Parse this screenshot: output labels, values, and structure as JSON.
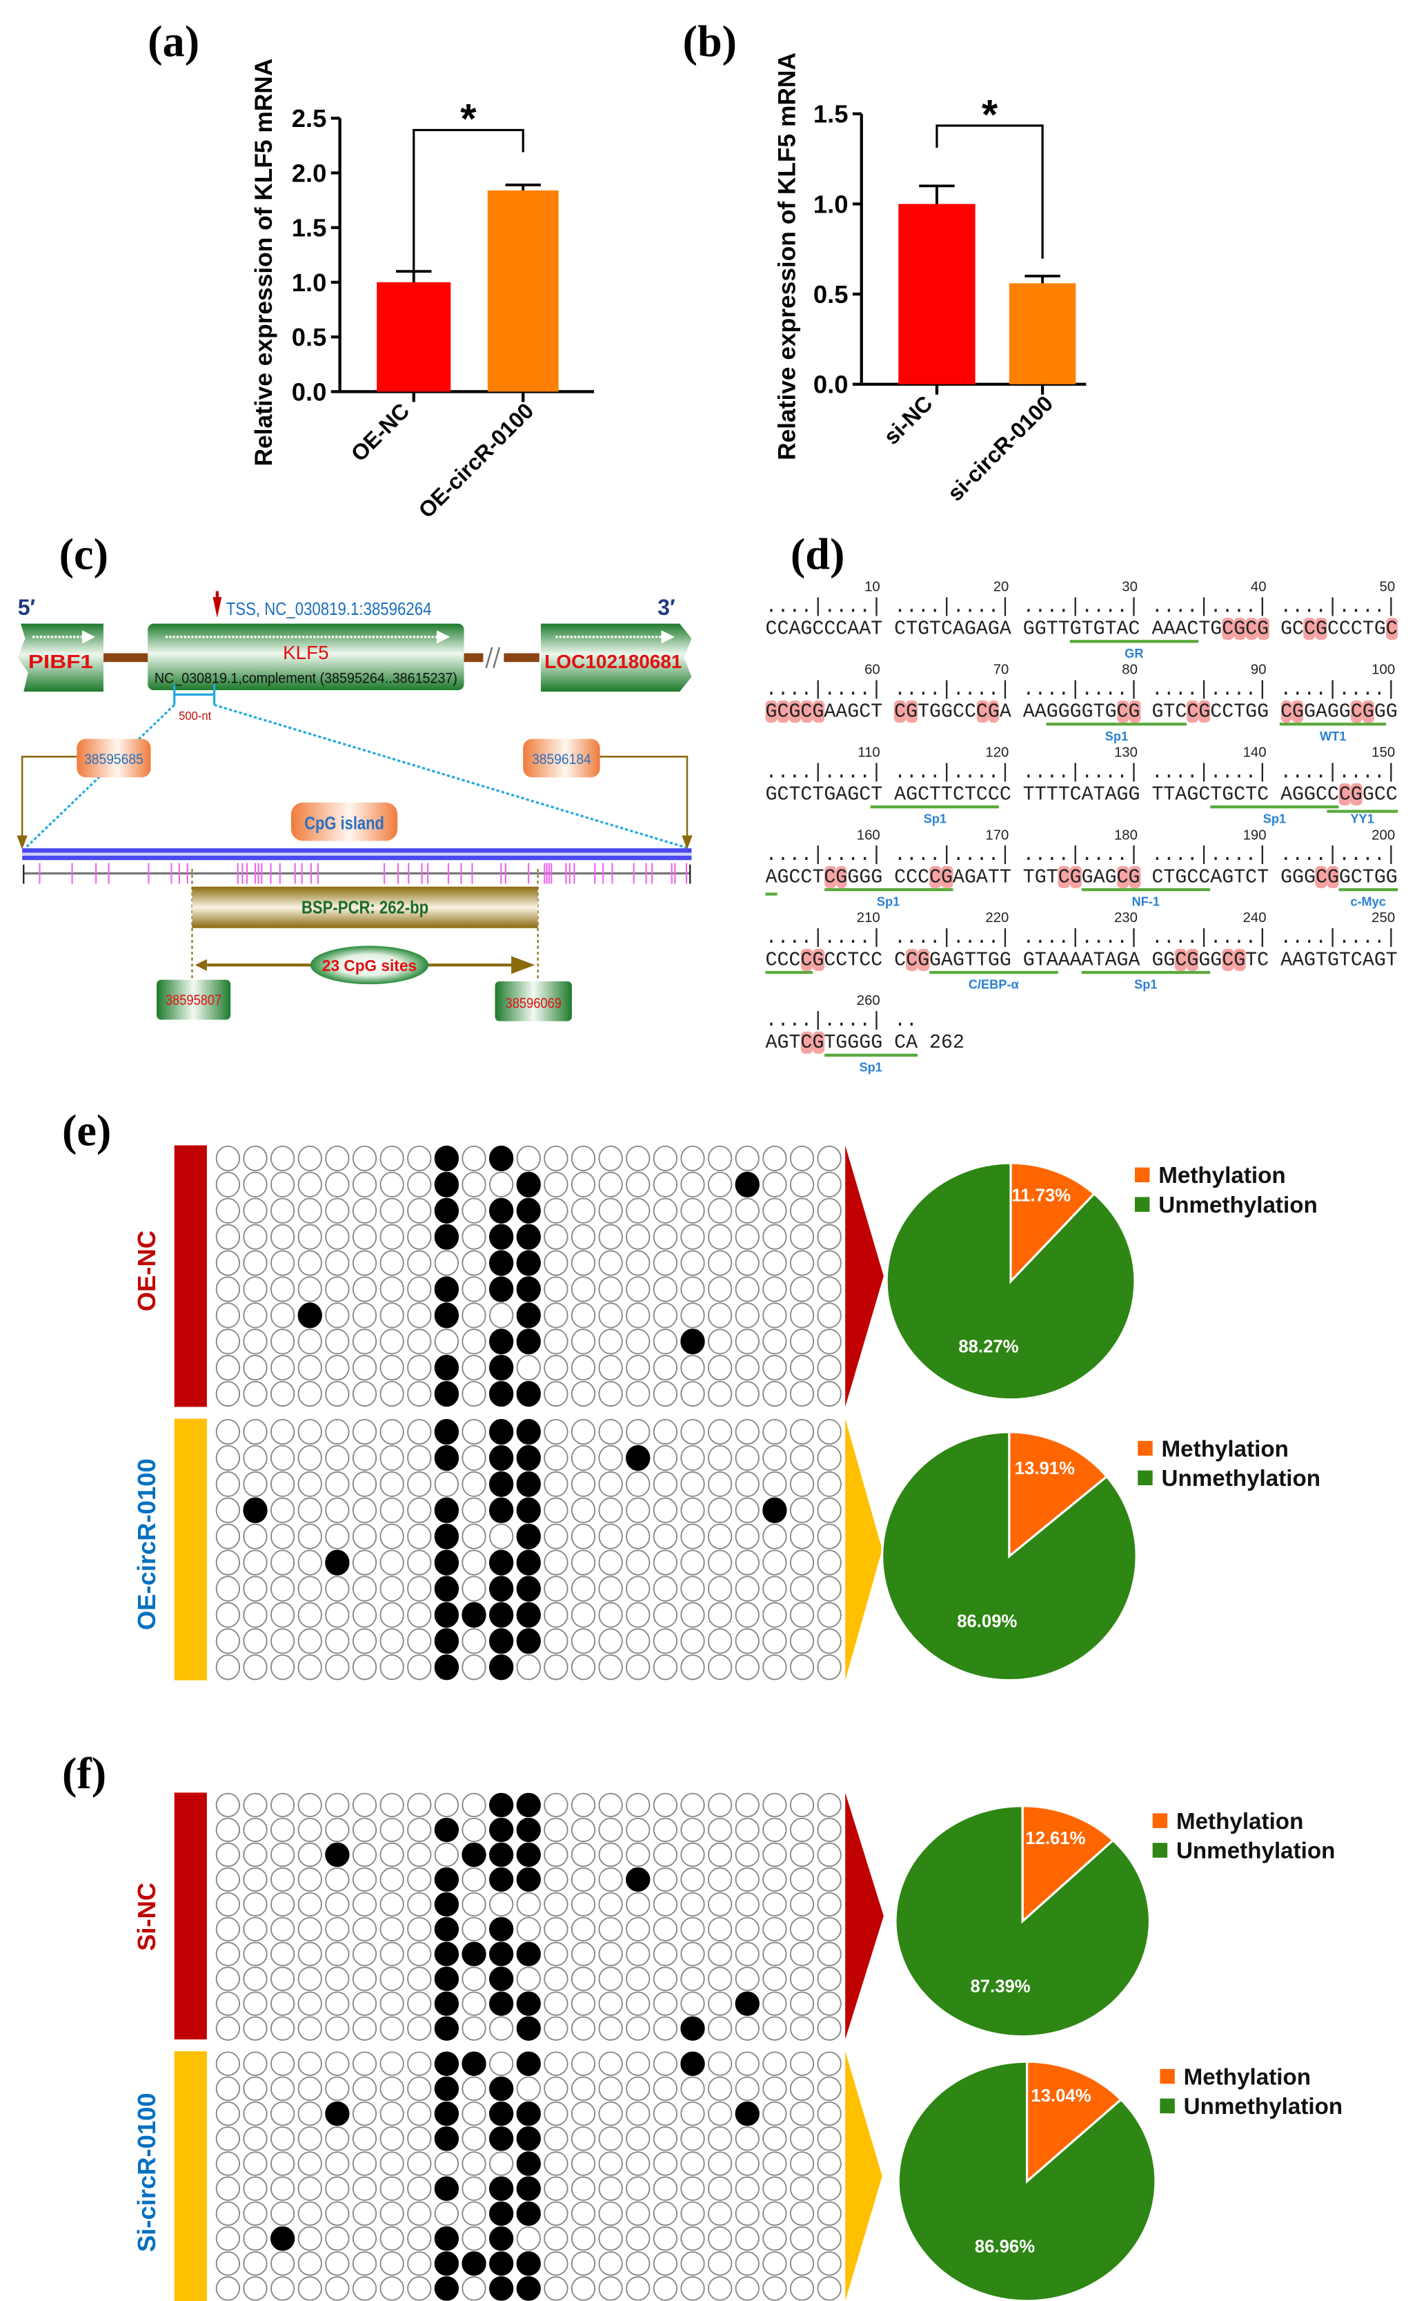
{
  "panel_labels": {
    "a": "(a)",
    "b": "(b)",
    "c": "(c)",
    "d": "(d)",
    "e": "(e)",
    "f": "(f)"
  },
  "colors": {
    "bar_control": "#ff0000",
    "bar_treatment": "#ff8000",
    "methylation": "#ff6600",
    "unmethylation": "#2e8614",
    "control_side": "#c00000",
    "treatment_side": "#ffc000",
    "control_text": "#c00000",
    "treatment_text": "#0070c0"
  },
  "chart_data": [
    {
      "id": "a",
      "type": "bar",
      "categories": [
        "OE-NC",
        "OE-circR-0100"
      ],
      "values": [
        1.0,
        1.84
      ],
      "errors": [
        0.1,
        0.05
      ],
      "ylabel": "Relative expression of KLF5 mRNA",
      "xlabel": "",
      "ylim": [
        0,
        2.5
      ],
      "yticks": [
        "0.0",
        "0.5",
        "1.0",
        "1.5",
        "2.0",
        "2.5"
      ],
      "significance": "*"
    },
    {
      "id": "b",
      "type": "bar",
      "categories": [
        "si-NC",
        "si-circR-0100"
      ],
      "values": [
        1.0,
        0.56
      ],
      "errors": [
        0.1,
        0.04
      ],
      "ylabel": "Relative expression of KLF5 mRNA",
      "xlabel": "",
      "ylim": [
        0,
        1.5
      ],
      "yticks": [
        "0.0",
        "0.5",
        "1.0",
        "1.5"
      ],
      "significance": "*"
    },
    {
      "id": "e-oe-nc",
      "type": "pie",
      "group": "OE-NC",
      "labels": [
        "Methylation",
        "Unmethylation"
      ],
      "values": [
        11.73,
        88.27
      ],
      "value_labels": [
        "11.73%",
        "88.27%"
      ],
      "legend": "right"
    },
    {
      "id": "e-oe-circ",
      "type": "pie",
      "group": "OE-circR-0100",
      "labels": [
        "Methylation",
        "Unmethylation"
      ],
      "values": [
        13.91,
        86.09
      ],
      "value_labels": [
        "13.91%",
        "86.09%"
      ],
      "legend": "right"
    },
    {
      "id": "f-si-nc",
      "type": "pie",
      "group": "Si-NC",
      "labels": [
        "Methylation",
        "Unmethylation"
      ],
      "values": [
        12.61,
        87.39
      ],
      "value_labels": [
        "12.61%",
        "87.39%"
      ],
      "legend": "right"
    },
    {
      "id": "f-si-circ",
      "type": "pie",
      "group": "Si-circR-0100",
      "labels": [
        "Methylation",
        "Unmethylation"
      ],
      "values": [
        13.04,
        86.96
      ],
      "value_labels": [
        "13.04%",
        "86.96%"
      ],
      "legend": "right"
    },
    {
      "id": "methylation-matrices",
      "type": "heatmap",
      "cpg_sites": 23,
      "clones": 10,
      "note": "rows list 0-based indexes of methylated CpG sites per clone",
      "groups": [
        {
          "name": "OE-NC",
          "panel": "e",
          "side": "control",
          "rows": [
            [
              8,
              10
            ],
            [
              8,
              11,
              19
            ],
            [
              8,
              10,
              11
            ],
            [
              8,
              10,
              11
            ],
            [
              10,
              11
            ],
            [
              8,
              10,
              11
            ],
            [
              3,
              8,
              11
            ],
            [
              10,
              11,
              17
            ],
            [
              8,
              10
            ],
            [
              8,
              10,
              11
            ]
          ]
        },
        {
          "name": "OE-circR-0100",
          "panel": "e",
          "side": "treatment",
          "rows": [
            [
              8,
              10,
              11
            ],
            [
              8,
              10,
              11,
              15
            ],
            [
              10,
              11
            ],
            [
              1,
              8,
              10,
              11,
              20
            ],
            [
              8,
              11
            ],
            [
              4,
              8,
              10,
              11
            ],
            [
              8,
              10,
              11
            ],
            [
              8,
              9,
              10,
              11
            ],
            [
              8,
              10,
              11
            ],
            [
              8,
              10
            ]
          ]
        },
        {
          "name": "Si-NC",
          "panel": "f",
          "side": "control",
          "rows": [
            [
              10,
              11
            ],
            [
              8,
              10,
              11
            ],
            [
              4,
              9,
              10,
              11
            ],
            [
              8,
              10,
              11,
              15
            ],
            [
              8
            ],
            [
              8,
              10
            ],
            [
              8,
              9,
              10,
              11
            ],
            [
              8,
              10
            ],
            [
              8,
              10,
              11,
              19
            ],
            [
              8,
              11,
              17
            ]
          ]
        },
        {
          "name": "Si-circR-0100",
          "panel": "f",
          "side": "treatment",
          "rows": [
            [
              8,
              9,
              11,
              17
            ],
            [
              8,
              10
            ],
            [
              4,
              8,
              10,
              11,
              19
            ],
            [
              8,
              10,
              11
            ],
            [
              11
            ],
            [
              8,
              10,
              11
            ],
            [
              10,
              11
            ],
            [
              2,
              8,
              10
            ],
            [
              8,
              9,
              10,
              11
            ],
            [
              8,
              10,
              11
            ]
          ]
        }
      ]
    }
  ],
  "diagram_c": {
    "five_prime": "5′",
    "three_prime": "3′",
    "tss": "TSS, NC_030819.1:38596264",
    "gene_left": "PIBF1",
    "gene_main": "KLF5",
    "gene_right": "LOC102180681",
    "klf5_coords": "NC_030819.1,complement (38595264..38615237)",
    "scale_label": "500-nt",
    "cpg_island_start": "38595685",
    "cpg_island_end": "38596184",
    "cpg_island_label": "CpG island",
    "bsp_label": "BSP-PCR: 262-bp",
    "cpg_sites_label": "23 CpG sites",
    "amplicon_start": "38595807",
    "amplicon_end": "38596069"
  },
  "sequence_d": {
    "rows": [
      "CCAGCCCAATCTGTCAGAGAGGTTGTGTACAAACTGCGCGGCCGCCCTGC",
      "GCGCGAAGCTCGTGGCCCGAAAGGGGTGCGGTCCGCCTGGCGGAGGCGGG",
      "GCTCTGAGCTAGCTTCTCCCTTTTCATAGGTTAGCTGCTCAGGCCCGGCC",
      "AGCCTCGGGGCCCCGAGATTTGTCGGAGCGCTGCCAGTCTGGGCGGCTGG",
      "CCCCGCCTCCCCGGAGTTGGGTAAAATAGAGGCGGGCGTCAAGTGTCAGT",
      "AGTCGTGGGGCA"
    ],
    "ticks": [
      [
        "10",
        "20",
        "30",
        "40",
        "50"
      ],
      [
        "60",
        "70",
        "80",
        "90",
        "100"
      ],
      [
        "110",
        "120",
        "130",
        "140",
        "150"
      ],
      [
        "160",
        "170",
        "180",
        "190",
        "200"
      ],
      [
        "210",
        "220",
        "230",
        "240",
        "250"
      ],
      [
        "260"
      ]
    ],
    "end_label": "262",
    "sites": [
      {
        "label": "GR",
        "start": 25,
        "end": 34
      },
      {
        "label": "Sp1",
        "start": 73,
        "end": 83
      },
      {
        "label": "WT1",
        "start": 91,
        "end": 99
      },
      {
        "label": "Sp1",
        "start": 110,
        "end": 119
      },
      {
        "label": "Sp1",
        "start": 136,
        "end": 145
      },
      {
        "label": "YY1",
        "start": 145,
        "end": 151
      },
      {
        "label": "Sp1",
        "start": 156,
        "end": 165
      },
      {
        "label": "NF-1",
        "start": 176,
        "end": 185
      },
      {
        "label": "c-Myc",
        "start": 196,
        "end": 204
      },
      {
        "label": "C/EBP-α",
        "start": 214,
        "end": 223
      },
      {
        "label": "Sp1",
        "start": 226,
        "end": 235
      },
      {
        "label": "Sp1",
        "start": 256,
        "end": 262
      }
    ]
  }
}
